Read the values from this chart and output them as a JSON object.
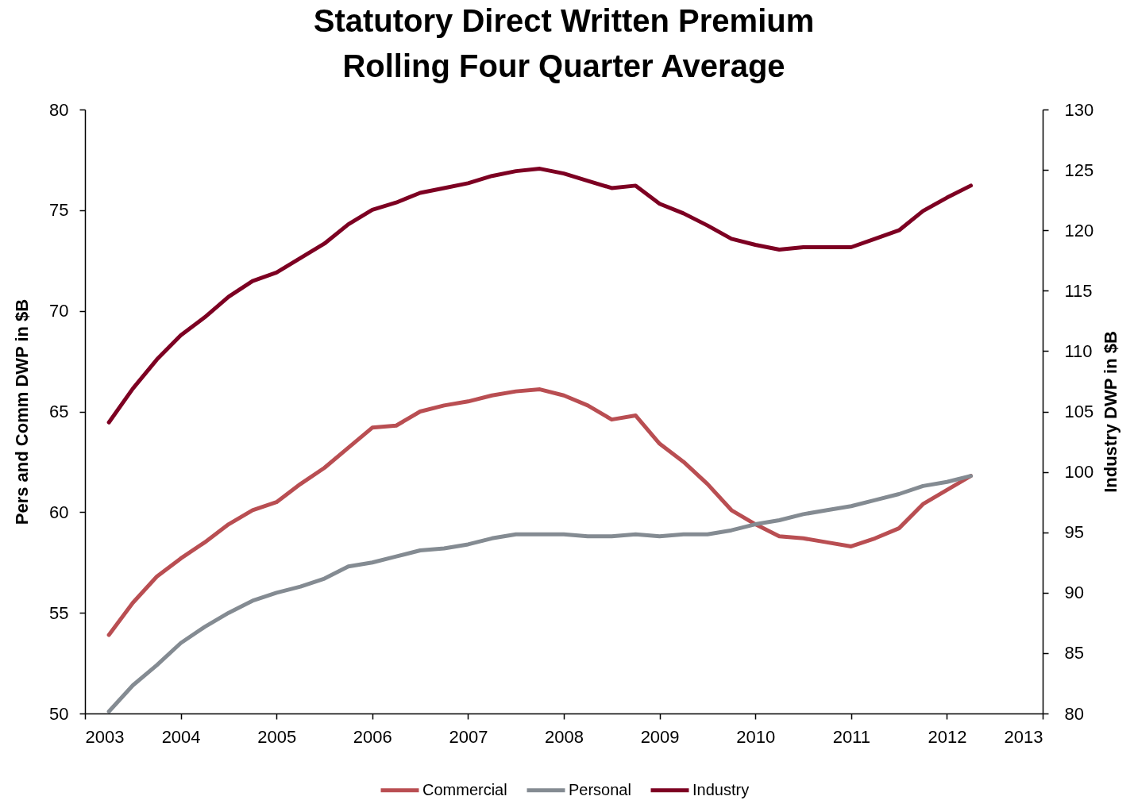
{
  "chart_data": {
    "type": "line",
    "title": "Statutory Direct Written Premium\nRolling Four Quarter Average",
    "ylabel": "Pers and Comm DWP in $B",
    "y2label": "Industry DWP in $B",
    "x": [
      2003.25,
      2003.5,
      2003.75,
      2004,
      2004.25,
      2004.5,
      2004.75,
      2005,
      2005.25,
      2005.5,
      2005.75,
      2006,
      2006.25,
      2006.5,
      2006.75,
      2007,
      2007.25,
      2007.5,
      2007.75,
      2008,
      2008.25,
      2008.5,
      2008.75,
      2009,
      2009.25,
      2009.5,
      2009.75,
      2010,
      2010.25,
      2010.5,
      2010.75,
      2011,
      2011.25,
      2011.5,
      2011.75,
      2012,
      2012.25
    ],
    "series": [
      {
        "name": "Commercial",
        "color": "#b94e52",
        "values": [
          53.9,
          55.5,
          56.8,
          57.7,
          58.5,
          59.4,
          60.1,
          60.5,
          61.4,
          62.2,
          63.2,
          64.2,
          64.3,
          65.0,
          65.3,
          65.5,
          65.8,
          66.0,
          66.1,
          65.8,
          65.3,
          64.6,
          64.8,
          63.4,
          62.5,
          61.4,
          60.1,
          59.4,
          58.8,
          58.7,
          58.5,
          58.3,
          58.7,
          59.2,
          60.4,
          61.1,
          61.8
        ]
      },
      {
        "name": "Personal",
        "color": "#848b92",
        "values": [
          50.1,
          51.4,
          52.4,
          53.5,
          54.3,
          55.0,
          55.6,
          56.0,
          56.3,
          56.7,
          57.3,
          57.5,
          57.8,
          58.1,
          58.2,
          58.4,
          58.7,
          58.9,
          58.9,
          58.9,
          58.8,
          58.8,
          58.9,
          58.8,
          58.9,
          58.9,
          59.1,
          59.4,
          59.6,
          59.9,
          60.1,
          60.3,
          60.6,
          60.9,
          61.3,
          61.5,
          61.8
        ]
      },
      {
        "name": "Industry",
        "color": "#7d0022",
        "axis": "y2",
        "values": [
          104.1,
          106.9,
          109.3,
          111.3,
          112.8,
          114.5,
          115.8,
          116.5,
          117.7,
          118.9,
          120.5,
          121.7,
          122.3,
          123.1,
          123.5,
          123.9,
          124.5,
          124.9,
          125.1,
          124.7,
          124.1,
          123.5,
          123.7,
          122.2,
          121.4,
          120.4,
          119.3,
          118.8,
          118.4,
          118.6,
          118.6,
          118.6,
          119.3,
          120.0,
          121.6,
          122.7,
          123.7
        ]
      }
    ],
    "xlim": [
      2003,
      2013
    ],
    "xticks": [
      2003,
      2004,
      2005,
      2006,
      2007,
      2008,
      2009,
      2010,
      2011,
      2012,
      2013
    ],
    "ylim": [
      50,
      80
    ],
    "yticks": [
      50,
      55,
      60,
      65,
      70,
      75,
      80
    ],
    "y2lim": [
      80,
      130
    ],
    "y2ticks": [
      80,
      85,
      90,
      95,
      100,
      105,
      110,
      115,
      120,
      125,
      130
    ],
    "grid": false,
    "legend": "bottom"
  }
}
